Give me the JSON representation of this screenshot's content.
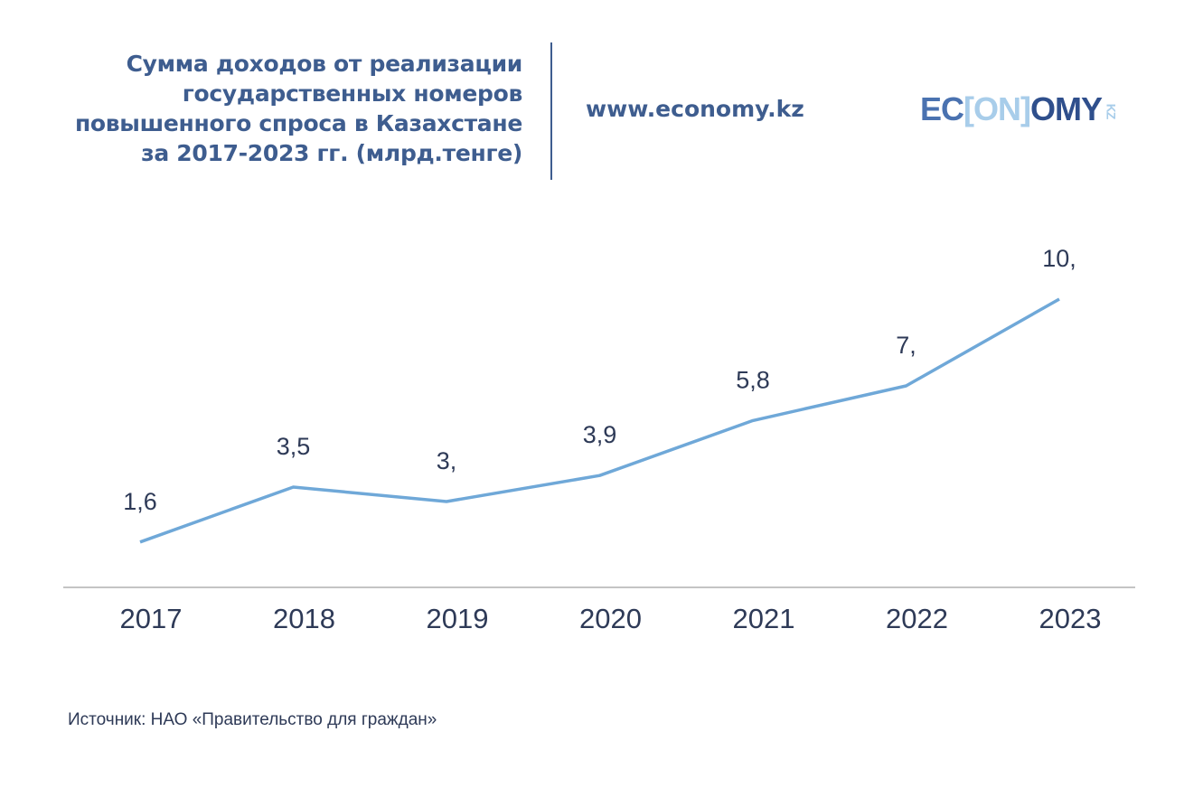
{
  "header": {
    "title_lines": [
      "Сумма доходов от реализации",
      "государственных номеров",
      "повышенного спроса в Казахстане",
      "за 2017-2023 гг. (млрд.тенге)"
    ],
    "site": "www.economy.kz",
    "logo": {
      "part1": "EC",
      "part2": "[ON]",
      "part3": "OMY",
      "part4": "KZ"
    }
  },
  "colors": {
    "line": "#6fa8d8",
    "axis": "#b0b0b0",
    "text": "#2e3a57",
    "title": "#3e5d8f"
  },
  "chart_data": {
    "type": "line",
    "title": "Сумма доходов от реализации государственных номеров повышенного спроса в Казахстане за 2017-2023 гг. (млрд.тенге)",
    "categories": [
      "2017",
      "2018",
      "2019",
      "2020",
      "2021",
      "2022",
      "2023"
    ],
    "values": [
      1.6,
      3.5,
      3.0,
      3.9,
      5.8,
      7.0,
      10.0
    ],
    "data_labels": [
      "1,6",
      "3,5",
      "3,",
      "3,9",
      "5,8",
      "7,",
      "10,"
    ],
    "xlabel": "",
    "ylabel": "",
    "ylim": [
      0,
      10.5
    ],
    "grid": false,
    "legend": "none"
  },
  "source": "Источник: НАО «Правительство для граждан»"
}
